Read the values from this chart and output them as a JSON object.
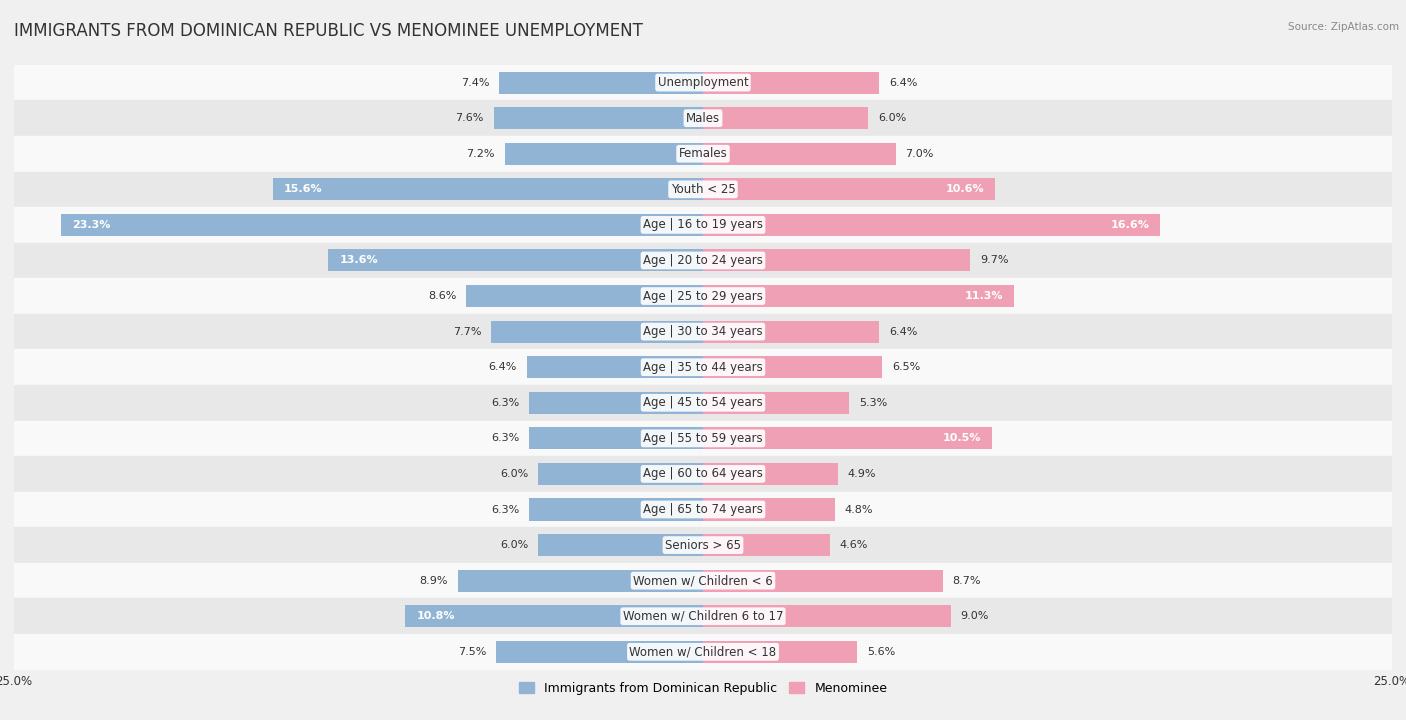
{
  "title": "IMMIGRANTS FROM DOMINICAN REPUBLIC VS MENOMINEE UNEMPLOYMENT",
  "source": "Source: ZipAtlas.com",
  "categories": [
    "Unemployment",
    "Males",
    "Females",
    "Youth < 25",
    "Age | 16 to 19 years",
    "Age | 20 to 24 years",
    "Age | 25 to 29 years",
    "Age | 30 to 34 years",
    "Age | 35 to 44 years",
    "Age | 45 to 54 years",
    "Age | 55 to 59 years",
    "Age | 60 to 64 years",
    "Age | 65 to 74 years",
    "Seniors > 65",
    "Women w/ Children < 6",
    "Women w/ Children 6 to 17",
    "Women w/ Children < 18"
  ],
  "left_values": [
    7.4,
    7.6,
    7.2,
    15.6,
    23.3,
    13.6,
    8.6,
    7.7,
    6.4,
    6.3,
    6.3,
    6.0,
    6.3,
    6.0,
    8.9,
    10.8,
    7.5
  ],
  "right_values": [
    6.4,
    6.0,
    7.0,
    10.6,
    16.6,
    9.7,
    11.3,
    6.4,
    6.5,
    5.3,
    10.5,
    4.9,
    4.8,
    4.6,
    8.7,
    9.0,
    5.6
  ],
  "left_color": "#92b4d4",
  "right_color": "#f0a0b4",
  "left_label": "Immigrants from Dominican Republic",
  "right_label": "Menominee",
  "xlim": 25.0,
  "bar_height": 0.62,
  "bg_color": "#f0f0f0",
  "row_bg_even": "#f9f9f9",
  "row_bg_odd": "#e8e8e8",
  "title_fontsize": 12,
  "label_fontsize": 8.5,
  "value_fontsize": 8,
  "axis_fontsize": 8.5,
  "text_color_dark": "#333333",
  "text_color_white": "#ffffff",
  "threshold_white_text": 10.0
}
